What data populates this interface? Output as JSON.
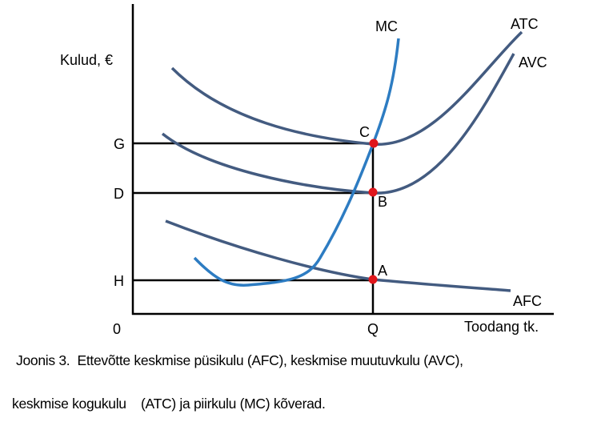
{
  "colors": {
    "cost_curve": "#435b80",
    "mc_curve": "#2d7cc2",
    "point": "#e0161b",
    "axis": "#000000"
  },
  "axis": {
    "y_label": "Kulud, €",
    "x_label": "Toodang tk.",
    "origin": "0",
    "q_label": "Q"
  },
  "levels": {
    "g": "G",
    "d": "D",
    "h": "H"
  },
  "curves": {
    "mc": "MC",
    "atc": "ATC",
    "avc": "AVC",
    "afc": "AFC"
  },
  "points": {
    "c": "C",
    "b": "B",
    "a": "A"
  },
  "caption": {
    "line1": "Joonis 3.  Ettevõtte keskmise püsikulu (AFC), keskmise muutuvkulu (AVC),",
    "line2": "keskmise kogukulu    (ATC) ja piirkulu (MC) kõverad."
  }
}
